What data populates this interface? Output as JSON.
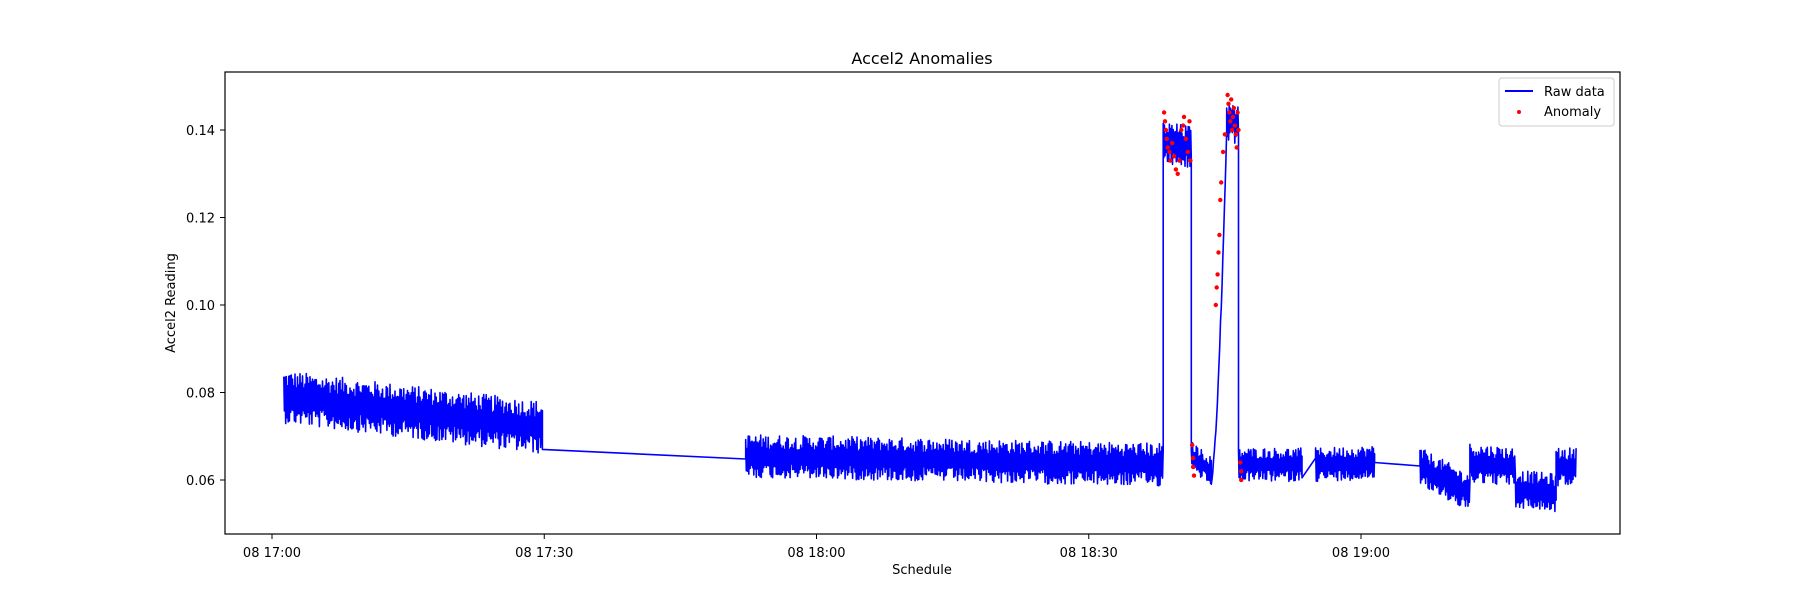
{
  "chart_data": {
    "type": "line",
    "title": "Accel2 Anomalies",
    "xlabel": "Schedule",
    "ylabel": "Accel2 Reading",
    "ylim": [
      0.048,
      0.153
    ],
    "xlim_minutes_from_1700": [
      -5,
      148.5
    ],
    "grid": false,
    "legend_position": "upper right",
    "x_ticks": [
      {
        "label": "08 17:00",
        "minute": 0
      },
      {
        "label": "08 17:30",
        "minute": 30
      },
      {
        "label": "08 18:00",
        "minute": 60
      },
      {
        "label": "08 18:30",
        "minute": 90
      },
      {
        "label": "08 19:00",
        "minute": 120
      }
    ],
    "y_ticks": [
      {
        "label": "0.06",
        "value": 0.06
      },
      {
        "label": "0.08",
        "value": 0.08
      },
      {
        "label": "0.10",
        "value": 0.1
      },
      {
        "label": "0.12",
        "value": 0.12
      },
      {
        "label": "0.14",
        "value": 0.14
      }
    ],
    "series": [
      {
        "name": "Raw data",
        "kind": "line",
        "color": "#0000ff",
        "segments": [
          {
            "start_min": 1.3,
            "end_min": 29.8,
            "center_start": 0.079,
            "center_end": 0.072,
            "amp": 0.0055
          },
          {
            "start_min": 29.8,
            "end_min": 52.2,
            "line_from": 0.067,
            "line_to": 0.0648
          },
          {
            "start_min": 52.2,
            "end_min": 98.2,
            "center_start": 0.0655,
            "center_end": 0.0635,
            "amp": 0.0045
          },
          {
            "start_min": 98.2,
            "end_min": 101.3,
            "center_start": 0.137,
            "center_end": 0.136,
            "amp": 0.0045
          },
          {
            "start_min": 101.3,
            "end_min": 103.5,
            "center_start": 0.0655,
            "center_end": 0.062,
            "amp": 0.003
          },
          {
            "start_min": 103.5,
            "end_min": 105.2,
            "ramp_from": 0.06,
            "ramp_to": 0.14
          },
          {
            "start_min": 105.2,
            "end_min": 106.5,
            "center_start": 0.142,
            "center_end": 0.141,
            "amp": 0.004
          },
          {
            "start_min": 106.5,
            "end_min": 113.5,
            "center_start": 0.0635,
            "center_end": 0.0635,
            "amp": 0.0035
          },
          {
            "start_min": 113.5,
            "end_min": 115.0,
            "line_from": 0.0605,
            "line_to": 0.065
          },
          {
            "start_min": 115.0,
            "end_min": 121.5,
            "center_start": 0.0635,
            "center_end": 0.064,
            "amp": 0.0035
          },
          {
            "start_min": 121.5,
            "end_min": 126.5,
            "line_from": 0.064,
            "line_to": 0.0632
          },
          {
            "start_min": 126.5,
            "end_min": 132.0,
            "center_start": 0.063,
            "center_end": 0.057,
            "amp": 0.004
          },
          {
            "start_min": 132.0,
            "end_min": 137.0,
            "center_start": 0.064,
            "center_end": 0.063,
            "amp": 0.004
          },
          {
            "start_min": 137.0,
            "end_min": 141.5,
            "center_start": 0.058,
            "center_end": 0.057,
            "amp": 0.004
          },
          {
            "start_min": 141.5,
            "end_min": 143.7,
            "center_start": 0.063,
            "center_end": 0.063,
            "amp": 0.004
          }
        ]
      },
      {
        "name": "Anomaly",
        "kind": "scatter",
        "color": "#ff0000",
        "points": [
          [
            98.3,
            0.144
          ],
          [
            98.4,
            0.142
          ],
          [
            98.5,
            0.14
          ],
          [
            98.6,
            0.138
          ],
          [
            98.7,
            0.136
          ],
          [
            98.9,
            0.135
          ],
          [
            99.0,
            0.133
          ],
          [
            99.2,
            0.137
          ],
          [
            99.4,
            0.134
          ],
          [
            99.6,
            0.131
          ],
          [
            99.8,
            0.13
          ],
          [
            100.0,
            0.133
          ],
          [
            100.2,
            0.14
          ],
          [
            100.4,
            0.141
          ],
          [
            100.5,
            0.143
          ],
          [
            100.7,
            0.138
          ],
          [
            100.9,
            0.135
          ],
          [
            101.1,
            0.142
          ],
          [
            101.2,
            0.133
          ],
          [
            101.4,
            0.068
          ],
          [
            101.5,
            0.065
          ],
          [
            101.5,
            0.063
          ],
          [
            101.6,
            0.061
          ],
          [
            104.0,
            0.1
          ],
          [
            104.1,
            0.104
          ],
          [
            104.2,
            0.107
          ],
          [
            104.3,
            0.112
          ],
          [
            104.4,
            0.116
          ],
          [
            104.5,
            0.124
          ],
          [
            104.6,
            0.128
          ],
          [
            104.8,
            0.135
          ],
          [
            105.0,
            0.139
          ],
          [
            105.3,
            0.148
          ],
          [
            105.4,
            0.146
          ],
          [
            105.5,
            0.144
          ],
          [
            105.6,
            0.142
          ],
          [
            105.7,
            0.147
          ],
          [
            105.8,
            0.14
          ],
          [
            105.9,
            0.143
          ],
          [
            106.0,
            0.145
          ],
          [
            106.1,
            0.141
          ],
          [
            106.2,
            0.139
          ],
          [
            106.3,
            0.136
          ],
          [
            106.4,
            0.144
          ],
          [
            106.5,
            0.14
          ],
          [
            106.7,
            0.064
          ],
          [
            106.8,
            0.062
          ],
          [
            106.8,
            0.06
          ]
        ]
      }
    ]
  },
  "legend": {
    "items": [
      {
        "label": "Raw data",
        "color": "#0000ff"
      },
      {
        "label": "Anomaly",
        "color": "#ff0000"
      }
    ]
  }
}
